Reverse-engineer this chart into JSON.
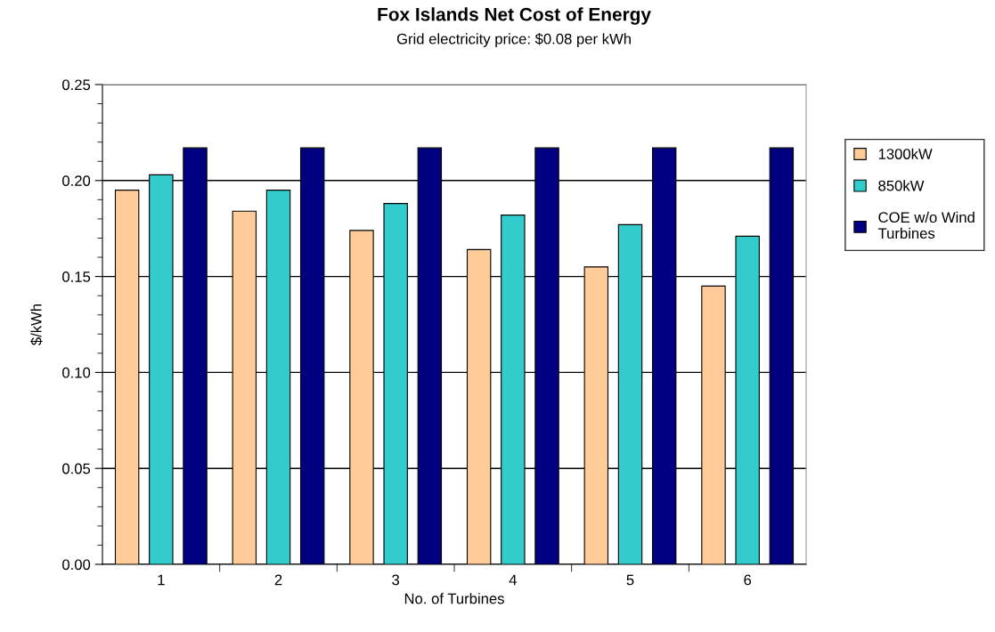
{
  "chart_data": {
    "type": "bar",
    "title": "Fox Islands Net Cost of Energy",
    "subtitle": "Grid electricity price: $0.08 per kWh",
    "xlabel": "No. of Turbines",
    "ylabel": "$/kWh",
    "categories": [
      "1",
      "2",
      "3",
      "4",
      "5",
      "6"
    ],
    "series": [
      {
        "name": "1300kW",
        "color": "#ffcc99",
        "values": [
          0.195,
          0.184,
          0.174,
          0.164,
          0.155,
          0.145
        ]
      },
      {
        "name": "850kW",
        "color": "#33cccc",
        "values": [
          0.203,
          0.195,
          0.188,
          0.182,
          0.177,
          0.171
        ]
      },
      {
        "name": "COE w/o Wind Turbines",
        "color": "#000080",
        "values": [
          0.217,
          0.217,
          0.217,
          0.217,
          0.217,
          0.217
        ]
      }
    ],
    "ylim": [
      0,
      0.25
    ],
    "yticks": [
      {
        "value": 0,
        "label": "0.00"
      },
      {
        "value": 0.05,
        "label": "0.05"
      },
      {
        "value": 0.1,
        "label": "0.10"
      },
      {
        "value": 0.15,
        "label": "0.15"
      },
      {
        "value": 0.2,
        "label": "0.20"
      },
      {
        "value": 0.25,
        "label": "0.25"
      }
    ],
    "grid": "y",
    "legend": "right"
  }
}
